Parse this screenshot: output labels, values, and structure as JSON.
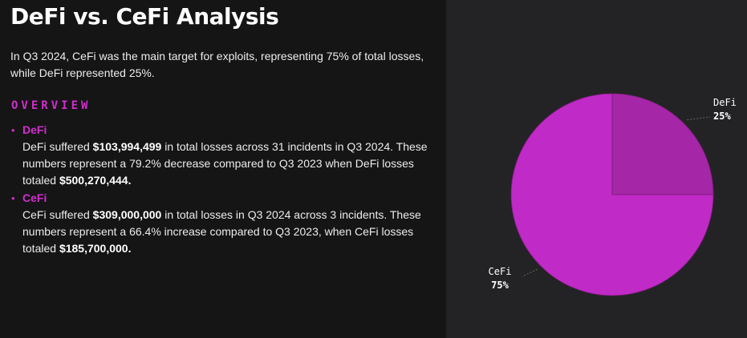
{
  "title": "DeFi vs. CeFi Analysis",
  "intro": "In Q3 2024, CeFi was the main target for exploits, representing 75% of total losses, while DeFi represented 25%.",
  "overview_label": "OVERVIEW",
  "items": [
    {
      "heading": "DeFi",
      "t1": "DeFi suffered ",
      "b1": "$103,994,499",
      "t2": " in total losses across 31 incidents in Q3 2024. These numbers represent a 79.2% decrease compared to Q3 2023 when DeFi losses totaled ",
      "b2": "$500,270,444."
    },
    {
      "heading": "CeFi",
      "t1": "CeFi suffered ",
      "b1": "$309,000,000",
      "t2": " in total losses in Q3 2024 across 3 incidents. These numbers represent a 66.4% increase compared to Q3 2023, when CeFi losses totaled ",
      "b2": "$185,700,000."
    }
  ],
  "colors": {
    "accent": "#d02ecd",
    "defi_slice": "#a526a6",
    "cefi_slice": "#c02ac6",
    "left_bg": "#151515",
    "right_bg": "#232325"
  },
  "chart_data": {
    "type": "pie",
    "categories": [
      "DeFi",
      "CeFi"
    ],
    "values": [
      25,
      75
    ],
    "value_labels": [
      "25%",
      "75%"
    ],
    "start_angle": "12 o'clock",
    "direction": "clockwise",
    "legend": "none",
    "slice_labels": "outside with leader lines"
  }
}
